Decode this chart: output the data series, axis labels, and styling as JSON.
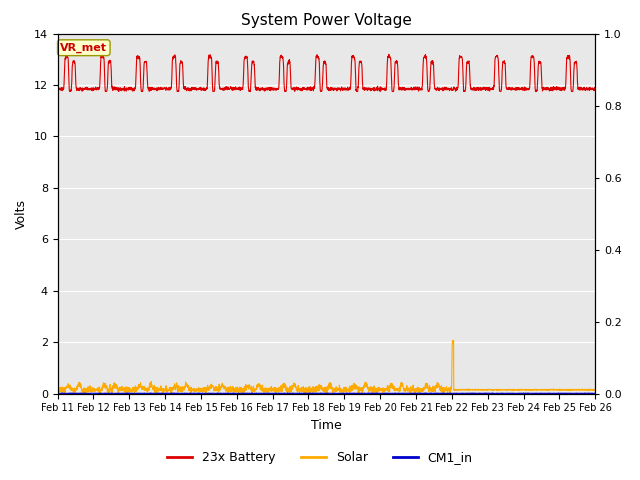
{
  "title": "System Power Voltage",
  "xlabel": "Time",
  "ylabel": "Volts",
  "background_color": "#e8e8e8",
  "ylim_left": [
    0,
    14
  ],
  "ylim_right": [
    0.0,
    1.0
  ],
  "yticks_left": [
    0,
    2,
    4,
    6,
    8,
    10,
    12,
    14
  ],
  "yticks_right": [
    0.0,
    0.2,
    0.4,
    0.6,
    0.8,
    1.0
  ],
  "xtick_labels": [
    "Feb 11",
    "Feb 12",
    "Feb 13",
    "Feb 14",
    "Feb 15",
    "Feb 16",
    "Feb 17",
    "Feb 18",
    "Feb 19",
    "Feb 20",
    "Feb 21",
    "Feb 22",
    "Feb 23",
    "Feb 24",
    "Feb 25",
    "Feb 26"
  ],
  "annotation_text": "VR_met",
  "annotation_bg": "#ffffcc",
  "annotation_border": "#999900",
  "colors": {
    "battery": "#dd0000",
    "solar": "#ffaa00",
    "cm1": "#0000cc"
  },
  "legend_labels": [
    "23x Battery",
    "Solar",
    "CM1_in"
  ],
  "grid_color": "#ffffff",
  "num_days": 15,
  "battery_baseline": 11.85,
  "battery_peak": 13.1,
  "battery_low": 11.75,
  "solar_level": 2.0,
  "solar_drop_day": 11,
  "solar_after_drop": 0.15
}
